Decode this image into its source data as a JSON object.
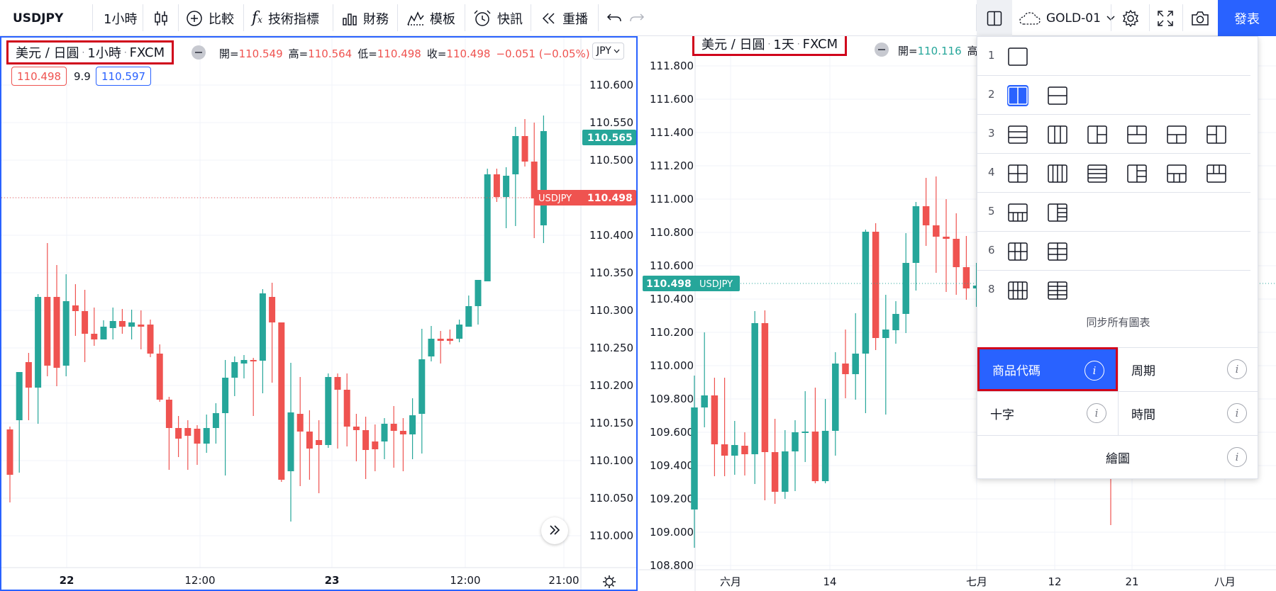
{
  "toolbar": {
    "symbol": "USDJPY",
    "interval": "1小時",
    "compare": "比較",
    "indicators": "技術指標",
    "financials": "財務",
    "templates": "模板",
    "alert": "快訊",
    "replay": "重播",
    "layout_name": "GOLD-01",
    "publish": "發表"
  },
  "left_pane": {
    "legend": {
      "base": "美元",
      "sep": "/",
      "quote": "日圓",
      "interval": "1小時",
      "exchange": "FXCM"
    },
    "ohlc": {
      "o_label": "開=",
      "o": "110.549",
      "h_label": "高=",
      "h": "110.564",
      "l_label": "低=",
      "l": "110.498",
      "c_label": "收=",
      "c": "110.498",
      "chg": "−0.051 (−0.05%)"
    },
    "bid": "110.498",
    "spread": "9.9",
    "ask": "110.597",
    "currency_btn": "JPY",
    "last_price": "110.565",
    "symbol_tag": "USDJPY",
    "symbol_tag_price": "110.498",
    "price_axis": [
      "110.600",
      "110.550",
      "110.500",
      "110.450",
      "110.400",
      "110.350",
      "110.300",
      "110.250",
      "110.200",
      "110.150",
      "110.100",
      "110.050",
      "110.000"
    ],
    "time_axis": [
      "22",
      "12:00",
      "23",
      "12:00",
      "21:00"
    ]
  },
  "right_pane": {
    "legend": {
      "base": "美元",
      "sep": "/",
      "quote": "日圓",
      "interval": "1天",
      "exchange": "FXCM"
    },
    "ohlc": {
      "o_label": "開=",
      "o": "110.116",
      "h_label": "高="
    },
    "price_tag": "110.498",
    "symbol_tag": "USDJPY",
    "price_axis": [
      "111.800",
      "111.600",
      "111.400",
      "111.200",
      "111.000",
      "110.800",
      "110.600",
      "110.400",
      "110.200",
      "110.000",
      "109.800",
      "109.600",
      "109.400",
      "109.200",
      "109.000",
      "108.800"
    ],
    "time_axis": [
      "六月",
      "14",
      "七月",
      "12",
      "21",
      "八月"
    ]
  },
  "layout_menu": {
    "rows": [
      "1",
      "2",
      "3",
      "4",
      "5",
      "6",
      "8"
    ],
    "sync_label": "同步所有圖表",
    "sync_symbol": "商品代碼",
    "sync_interval": "周期",
    "sync_crosshair": "十字",
    "sync_time": "時間",
    "sync_drawings": "繪圖",
    "info": "i"
  },
  "colors": {
    "up": "#26a69a",
    "down": "#ef5350",
    "accent": "#2962ff",
    "highlight": "#d0021b"
  }
}
